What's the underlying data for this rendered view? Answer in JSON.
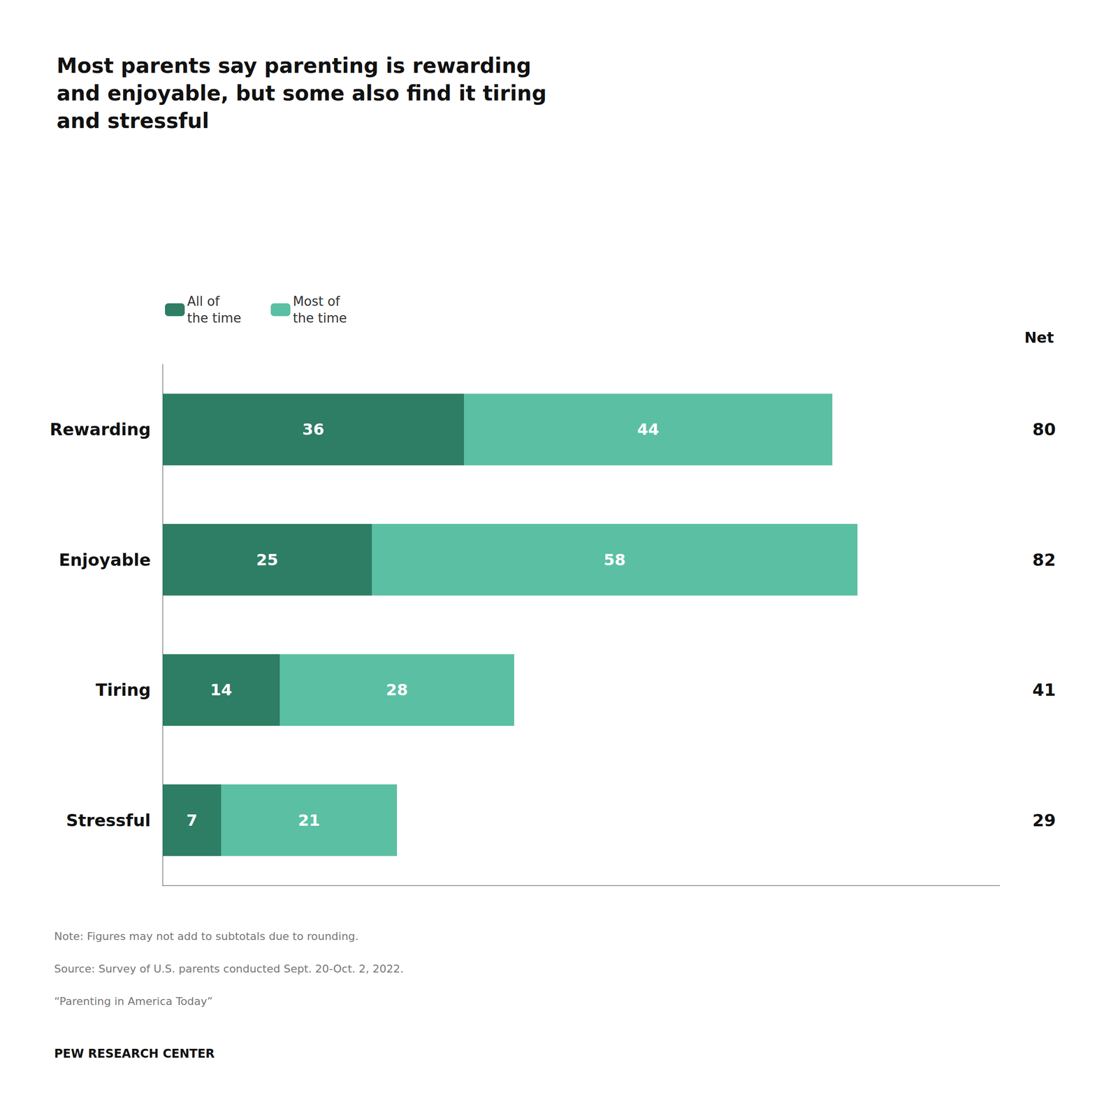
{
  "chart_data": {
    "type": "bar",
    "title": "Most parents say parenting is rewarding\nand enjoyable, but some also find it tiring\nand stressful",
    "orientation": "horizontal",
    "stacked": true,
    "categories": [
      "Rewarding",
      "Enjoyable",
      "Tiring",
      "Stressful"
    ],
    "series": [
      {
        "name": "All of\nthe time",
        "color": "#2e7d65",
        "values": [
          36,
          25,
          14,
          7
        ]
      },
      {
        "name": "Most of\nthe time",
        "color": "#5bbfa3",
        "values": [
          44,
          58,
          28,
          21
        ]
      }
    ],
    "net": {
      "name": "Net",
      "values": [
        80,
        82,
        41,
        29
      ]
    },
    "data_labels": true,
    "tick_labels": "y",
    "grid": false,
    "legend": "top",
    "xlim": [
      0,
      100
    ],
    "annotations": [
      "Note: Figures may not add to subtotals due to rounding.",
      "Source: Survey of U.S. parents conducted Sept. 20-Oct. 2, 2022.",
      "“Parenting in America Today”",
      "PEW RESEARCH CENTER"
    ]
  }
}
